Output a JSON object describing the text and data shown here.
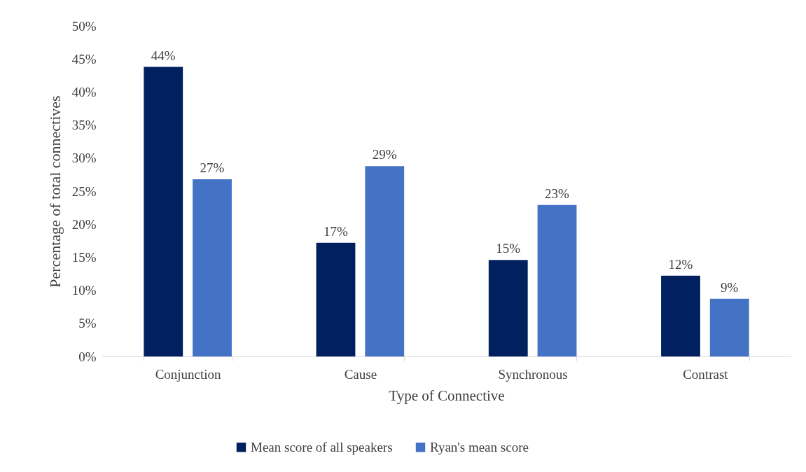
{
  "chart_data": {
    "type": "bar",
    "xlabel": "Type of Connective",
    "ylabel": "Percentage of total connectives",
    "categories": [
      "Conjunction",
      "Cause",
      "Synchronous",
      "Contrast"
    ],
    "series": [
      {
        "name": "Mean score of all speakers",
        "color": "#002060",
        "values": [
          43.8,
          17.2,
          14.6,
          12.2
        ],
        "value_labels": [
          "44%",
          "17%",
          "15%",
          "12%"
        ]
      },
      {
        "name": "Ryan's mean score",
        "color": "#4472c4",
        "values": [
          26.8,
          28.8,
          22.9,
          8.7
        ],
        "value_labels": [
          "27%",
          "29%",
          "23%",
          "9%"
        ]
      }
    ],
    "ylim": [
      0,
      50
    ],
    "yticks": [
      {
        "value": 0,
        "label": "0%"
      },
      {
        "value": 5,
        "label": "5%"
      },
      {
        "value": 10,
        "label": "10%"
      },
      {
        "value": 15,
        "label": "15%"
      },
      {
        "value": 20,
        "label": "20%"
      },
      {
        "value": 25,
        "label": "25%"
      },
      {
        "value": 30,
        "label": "30%"
      },
      {
        "value": 35,
        "label": "35%"
      },
      {
        "value": 40,
        "label": "40%"
      },
      {
        "value": 45,
        "label": "45%"
      },
      {
        "value": 50,
        "label": "50%"
      }
    ],
    "legend": "bottom"
  }
}
